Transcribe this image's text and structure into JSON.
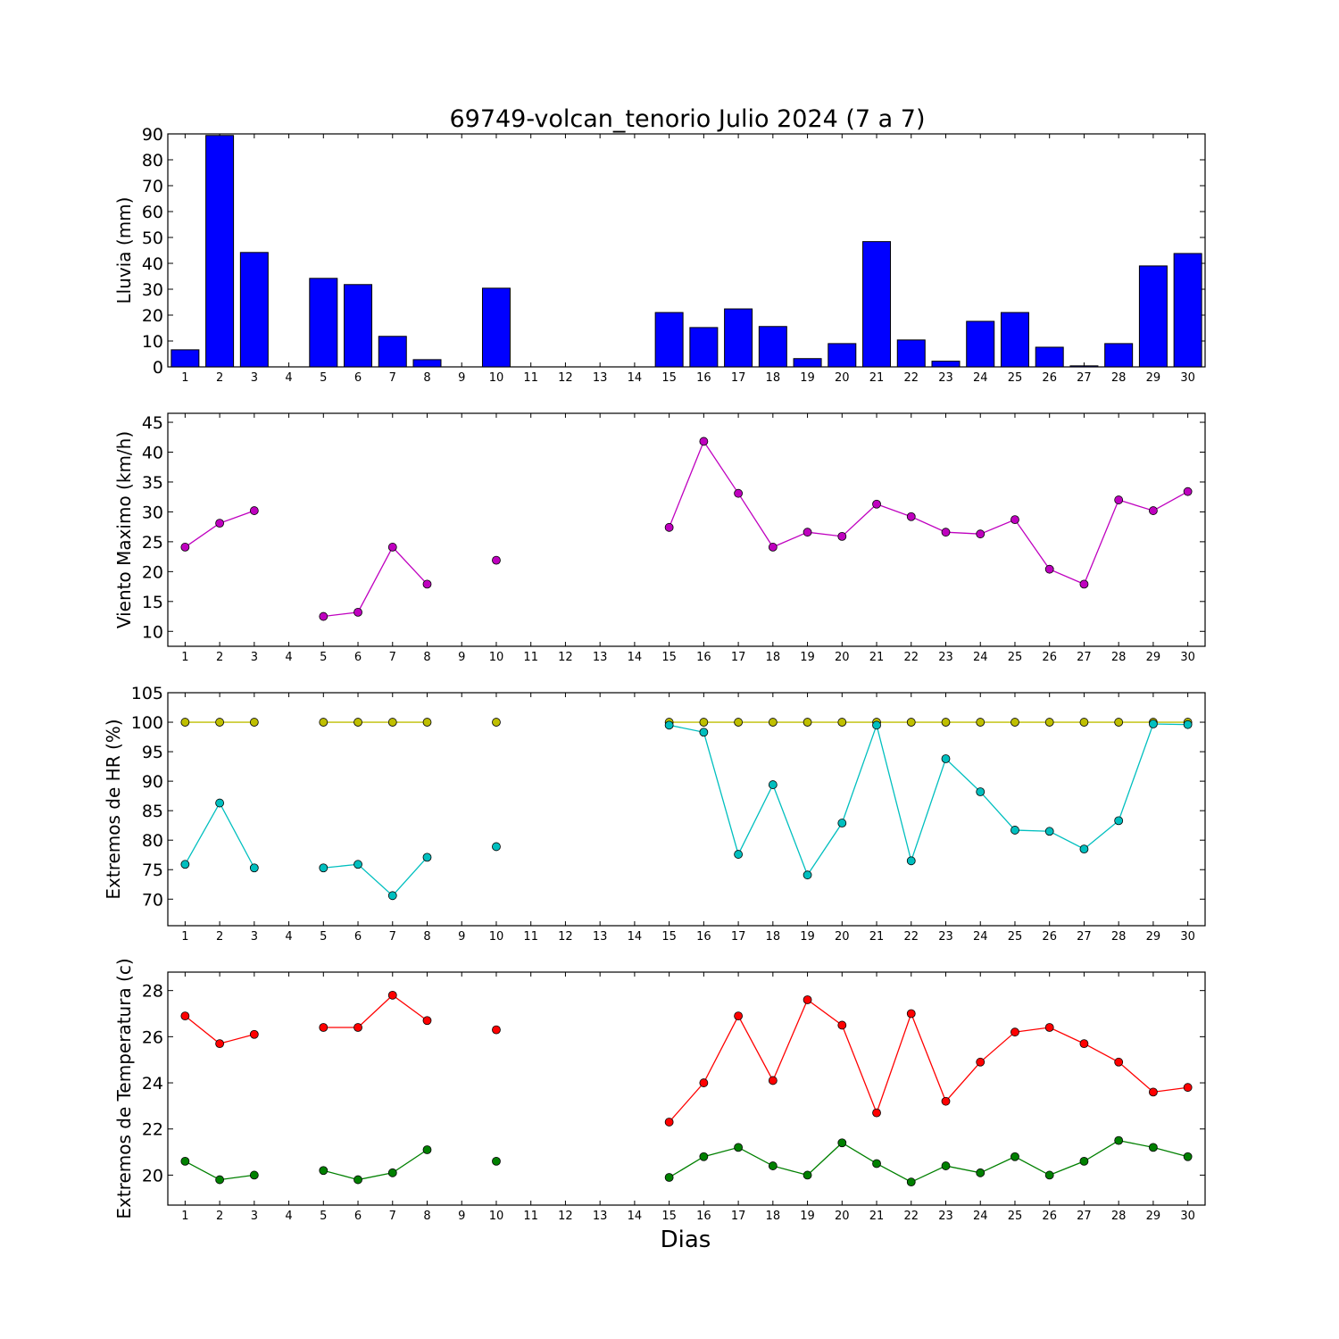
{
  "title": "69749-volcan_tenorio Julio 2024  (7 a 7)",
  "xlabel": "Dias",
  "chart_data": [
    {
      "type": "bar",
      "ylabel": "Lluvia (mm)",
      "ylim": [
        0,
        90
      ],
      "yticks": [
        0,
        10,
        20,
        30,
        40,
        50,
        60,
        70,
        80,
        90
      ],
      "categories": [
        1,
        2,
        3,
        4,
        5,
        6,
        7,
        8,
        9,
        10,
        11,
        12,
        13,
        14,
        15,
        16,
        17,
        18,
        19,
        20,
        21,
        22,
        23,
        24,
        25,
        26,
        27,
        28,
        29,
        30
      ],
      "series": [
        {
          "color": "#0000ff",
          "values": [
            6.6,
            89.4,
            44.2,
            0,
            34.2,
            31.8,
            11.8,
            2.8,
            0,
            30.4,
            0,
            0,
            0,
            0,
            21.0,
            15.2,
            22.4,
            15.6,
            3.2,
            9.0,
            48.4,
            10.4,
            2.2,
            17.6,
            21.0,
            7.6,
            0.4,
            9.0,
            39.0,
            43.8
          ]
        }
      ]
    },
    {
      "type": "line",
      "ylabel": "Viento Maximo (km/h)",
      "ylim": [
        7.5,
        46.5
      ],
      "yticks": [
        10,
        15,
        20,
        25,
        30,
        35,
        40,
        45
      ],
      "categories": [
        1,
        2,
        3,
        4,
        5,
        6,
        7,
        8,
        9,
        10,
        11,
        12,
        13,
        14,
        15,
        16,
        17,
        18,
        19,
        20,
        21,
        22,
        23,
        24,
        25,
        26,
        27,
        28,
        29,
        30
      ],
      "series": [
        {
          "color": "#bf00bf",
          "values": [
            24.1,
            28.1,
            30.2,
            null,
            12.5,
            13.2,
            24.1,
            17.9,
            null,
            21.9,
            null,
            null,
            null,
            null,
            27.4,
            41.8,
            33.1,
            24.1,
            26.6,
            25.9,
            31.3,
            29.2,
            26.6,
            26.3,
            28.7,
            20.4,
            17.9,
            32.0,
            30.2,
            33.4
          ]
        }
      ]
    },
    {
      "type": "line",
      "ylabel": "Extremos de HR (%)",
      "ylim": [
        65.5,
        105
      ],
      "yticks": [
        70,
        75,
        80,
        85,
        90,
        95,
        100,
        105
      ],
      "categories": [
        1,
        2,
        3,
        4,
        5,
        6,
        7,
        8,
        9,
        10,
        11,
        12,
        13,
        14,
        15,
        16,
        17,
        18,
        19,
        20,
        21,
        22,
        23,
        24,
        25,
        26,
        27,
        28,
        29,
        30
      ],
      "series": [
        {
          "color": "#bfbf00",
          "values": [
            100,
            100,
            100,
            null,
            100,
            100,
            100,
            100,
            null,
            100,
            null,
            null,
            null,
            null,
            100,
            100,
            100,
            100,
            100,
            100,
            100,
            100,
            100,
            100,
            100,
            100,
            100,
            100,
            100,
            100
          ]
        },
        {
          "color": "#00bfbf",
          "values": [
            75.9,
            86.3,
            75.3,
            null,
            75.3,
            75.9,
            70.6,
            77.1,
            null,
            78.9,
            null,
            null,
            null,
            null,
            99.5,
            98.3,
            77.6,
            89.4,
            74.1,
            82.9,
            99.5,
            76.5,
            93.8,
            88.2,
            81.7,
            81.5,
            78.5,
            83.3,
            99.7,
            99.6
          ]
        }
      ]
    },
    {
      "type": "line",
      "ylabel": "Extremos de Temperatura (c)",
      "ylim": [
        18.7,
        28.8
      ],
      "yticks": [
        20,
        22,
        24,
        26,
        28
      ],
      "categories": [
        1,
        2,
        3,
        4,
        5,
        6,
        7,
        8,
        9,
        10,
        11,
        12,
        13,
        14,
        15,
        16,
        17,
        18,
        19,
        20,
        21,
        22,
        23,
        24,
        25,
        26,
        27,
        28,
        29,
        30
      ],
      "series": [
        {
          "color": "#ff0000",
          "values": [
            26.9,
            25.7,
            26.1,
            null,
            26.4,
            26.4,
            27.8,
            26.7,
            null,
            26.3,
            null,
            null,
            null,
            null,
            22.3,
            24.0,
            26.9,
            24.1,
            27.6,
            26.5,
            22.7,
            27.0,
            23.2,
            24.9,
            26.2,
            26.4,
            25.7,
            24.9,
            23.6,
            23.8
          ]
        },
        {
          "color": "#008000",
          "values": [
            20.6,
            19.8,
            20.0,
            null,
            20.2,
            19.8,
            20.1,
            21.1,
            null,
            20.6,
            null,
            null,
            null,
            null,
            19.9,
            20.8,
            21.2,
            20.4,
            20.0,
            21.4,
            20.5,
            19.7,
            20.4,
            20.1,
            20.8,
            20.0,
            20.6,
            21.5,
            21.2,
            20.8
          ]
        }
      ]
    }
  ]
}
